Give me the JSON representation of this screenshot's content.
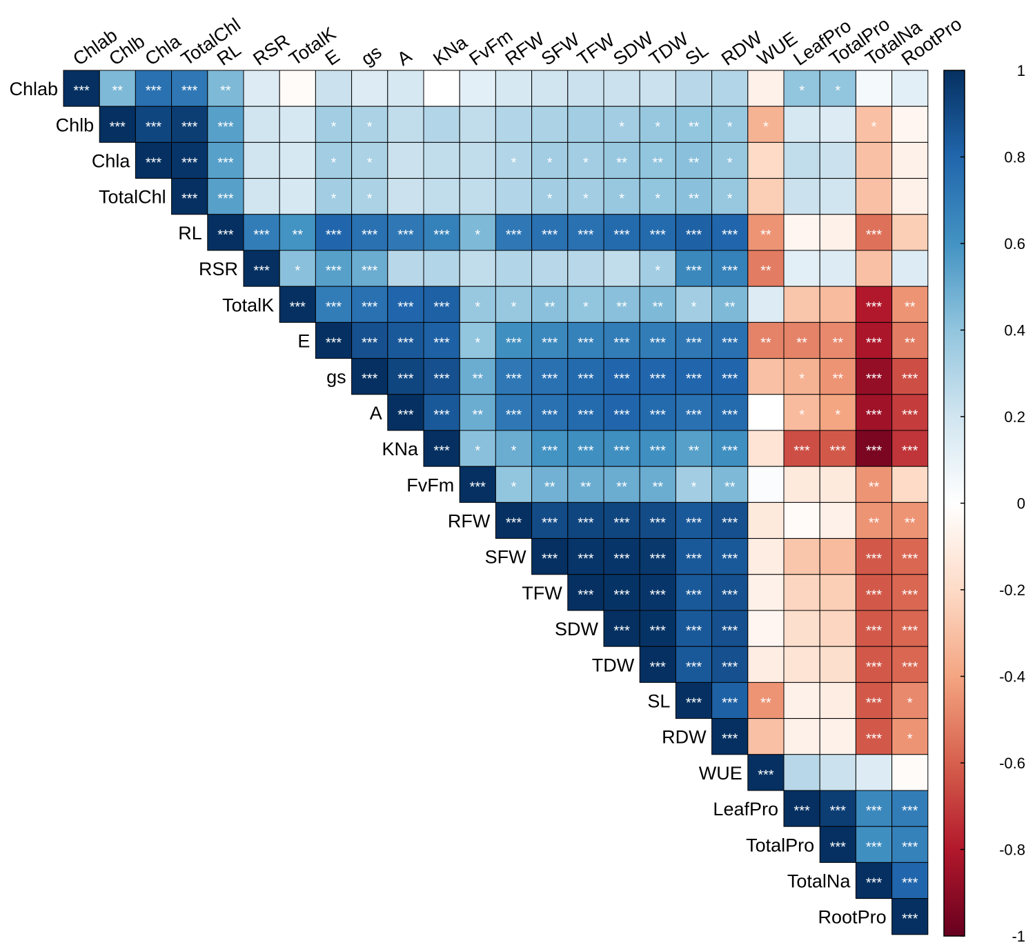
{
  "chart_data": {
    "type": "heatmap",
    "title": "",
    "variables": [
      "Chlab",
      "Chlb",
      "Chla",
      "TotalChl",
      "RL",
      "RSR",
      "TotalK",
      "E",
      "gs",
      "A",
      "KNa",
      "FvFm",
      "RFW",
      "SFW",
      "TFW",
      "SDW",
      "TDW",
      "SL",
      "RDW",
      "WUE",
      "LeafPro",
      "TotalPro",
      "TotalNa",
      "RootPro"
    ],
    "colorbar": {
      "min": -1,
      "max": 1,
      "ticks": [
        "1",
        "0.8",
        "0.6",
        "0.4",
        "0.2",
        "0",
        "-0.2",
        "-0.4",
        "-0.6",
        "-0.8",
        "-1"
      ]
    },
    "colors": {
      "neg": "#67001f",
      "mid": "#ffffff",
      "pos": "#053061",
      "grid": "#000000",
      "star": "#ffffff"
    },
    "values": [
      [
        1,
        0.45,
        0.75,
        0.72,
        0.45,
        0.15,
        -0.02,
        0.22,
        0.15,
        0.18,
        0.0,
        0.12,
        0.18,
        0.2,
        0.22,
        0.22,
        0.22,
        0.28,
        0.3,
        -0.08,
        0.4,
        0.4,
        0.05,
        0.12
      ],
      [
        null,
        1,
        0.92,
        0.95,
        0.55,
        0.2,
        0.18,
        0.35,
        0.32,
        0.25,
        0.3,
        0.25,
        0.3,
        0.32,
        0.35,
        0.35,
        0.38,
        0.4,
        0.38,
        -0.35,
        0.18,
        0.15,
        -0.3,
        -0.05
      ],
      [
        null,
        null,
        1,
        0.98,
        0.55,
        0.2,
        0.18,
        0.35,
        0.32,
        0.22,
        0.25,
        0.25,
        0.3,
        0.35,
        0.35,
        0.38,
        0.4,
        0.42,
        0.38,
        -0.2,
        0.25,
        0.22,
        -0.3,
        -0.08
      ],
      [
        null,
        null,
        null,
        1,
        0.55,
        0.2,
        0.18,
        0.35,
        0.32,
        0.22,
        0.25,
        0.25,
        0.3,
        0.35,
        0.35,
        0.38,
        0.4,
        0.42,
        0.38,
        -0.25,
        0.22,
        0.2,
        -0.3,
        -0.08
      ],
      [
        null,
        null,
        null,
        null,
        1,
        0.7,
        0.6,
        0.8,
        0.75,
        0.72,
        0.68,
        0.45,
        0.72,
        0.75,
        0.75,
        0.78,
        0.78,
        0.82,
        0.8,
        -0.45,
        -0.05,
        -0.08,
        -0.55,
        -0.25
      ],
      [
        null,
        null,
        null,
        null,
        null,
        1,
        0.42,
        0.55,
        0.5,
        0.28,
        0.3,
        0.25,
        0.3,
        0.28,
        0.28,
        0.25,
        0.35,
        0.65,
        0.68,
        -0.52,
        0.12,
        0.15,
        -0.3,
        0.15
      ],
      [
        null,
        null,
        null,
        null,
        null,
        null,
        1,
        0.7,
        0.75,
        0.8,
        0.82,
        0.38,
        0.38,
        0.42,
        0.4,
        0.42,
        0.45,
        0.35,
        0.45,
        0.15,
        -0.28,
        -0.32,
        -0.8,
        -0.45
      ],
      [
        null,
        null,
        null,
        null,
        null,
        null,
        null,
        1,
        0.88,
        0.85,
        0.82,
        0.4,
        0.62,
        0.65,
        0.68,
        0.7,
        0.7,
        0.72,
        0.75,
        -0.5,
        -0.5,
        -0.48,
        -0.82,
        -0.52
      ],
      [
        null,
        null,
        null,
        null,
        null,
        null,
        null,
        null,
        1,
        0.92,
        0.88,
        0.5,
        0.72,
        0.75,
        0.78,
        0.8,
        0.8,
        0.8,
        0.8,
        -0.3,
        -0.35,
        -0.45,
        -0.88,
        -0.65
      ],
      [
        null,
        null,
        null,
        null,
        null,
        null,
        null,
        null,
        null,
        1,
        0.85,
        0.5,
        0.72,
        0.75,
        0.78,
        0.8,
        0.78,
        0.75,
        0.78,
        0.0,
        -0.32,
        -0.4,
        -0.85,
        -0.7
      ],
      [
        null,
        null,
        null,
        null,
        null,
        null,
        null,
        null,
        null,
        null,
        1,
        0.42,
        0.5,
        0.6,
        0.62,
        0.62,
        0.62,
        0.55,
        0.62,
        -0.15,
        -0.65,
        -0.62,
        -0.95,
        -0.72
      ],
      [
        null,
        null,
        null,
        null,
        null,
        null,
        null,
        null,
        null,
        null,
        null,
        1,
        0.4,
        0.48,
        0.5,
        0.5,
        0.5,
        0.35,
        0.45,
        0.02,
        -0.12,
        -0.12,
        -0.45,
        -0.2
      ],
      [
        null,
        null,
        null,
        null,
        null,
        null,
        null,
        null,
        null,
        null,
        null,
        null,
        1,
        0.9,
        0.92,
        0.92,
        0.9,
        0.85,
        0.88,
        -0.12,
        -0.02,
        -0.08,
        -0.45,
        -0.45
      ],
      [
        null,
        null,
        null,
        null,
        null,
        null,
        null,
        null,
        null,
        null,
        null,
        null,
        null,
        1,
        0.98,
        0.98,
        0.97,
        0.85,
        0.85,
        -0.1,
        -0.28,
        -0.32,
        -0.62,
        -0.58
      ],
      [
        null,
        null,
        null,
        null,
        null,
        null,
        null,
        null,
        null,
        null,
        null,
        null,
        null,
        null,
        1,
        0.99,
        0.98,
        0.85,
        0.88,
        -0.08,
        -0.22,
        -0.25,
        -0.62,
        -0.58
      ],
      [
        null,
        null,
        null,
        null,
        null,
        null,
        null,
        null,
        null,
        null,
        null,
        null,
        null,
        null,
        null,
        1,
        0.99,
        0.85,
        0.88,
        -0.05,
        -0.18,
        -0.22,
        -0.62,
        -0.58
      ],
      [
        null,
        null,
        null,
        null,
        null,
        null,
        null,
        null,
        null,
        null,
        null,
        null,
        null,
        null,
        null,
        null,
        1,
        0.85,
        0.88,
        -0.1,
        -0.15,
        -0.18,
        -0.62,
        -0.58
      ],
      [
        null,
        null,
        null,
        null,
        null,
        null,
        null,
        null,
        null,
        null,
        null,
        null,
        null,
        null,
        null,
        null,
        null,
        1,
        0.82,
        -0.45,
        -0.08,
        -0.1,
        -0.62,
        -0.48
      ],
      [
        null,
        null,
        null,
        null,
        null,
        null,
        null,
        null,
        null,
        null,
        null,
        null,
        null,
        null,
        null,
        null,
        null,
        null,
        1,
        -0.3,
        -0.08,
        -0.08,
        -0.62,
        -0.45
      ],
      [
        null,
        null,
        null,
        null,
        null,
        null,
        null,
        null,
        null,
        null,
        null,
        null,
        null,
        null,
        null,
        null,
        null,
        null,
        null,
        1,
        0.28,
        0.22,
        0.15,
        -0.02
      ],
      [
        null,
        null,
        null,
        null,
        null,
        null,
        null,
        null,
        null,
        null,
        null,
        null,
        null,
        null,
        null,
        null,
        null,
        null,
        null,
        null,
        1,
        0.95,
        0.65,
        0.7
      ],
      [
        null,
        null,
        null,
        null,
        null,
        null,
        null,
        null,
        null,
        null,
        null,
        null,
        null,
        null,
        null,
        null,
        null,
        null,
        null,
        null,
        null,
        1,
        0.62,
        0.68
      ],
      [
        null,
        null,
        null,
        null,
        null,
        null,
        null,
        null,
        null,
        null,
        null,
        null,
        null,
        null,
        null,
        null,
        null,
        null,
        null,
        null,
        null,
        null,
        1,
        0.8
      ],
      [
        null,
        null,
        null,
        null,
        null,
        null,
        null,
        null,
        null,
        null,
        null,
        null,
        null,
        null,
        null,
        null,
        null,
        null,
        null,
        null,
        null,
        null,
        null,
        1
      ]
    ],
    "significance": [
      [
        "***",
        "**",
        "***",
        "***",
        "**",
        "",
        "",
        "",
        "",
        "",
        "",
        "",
        "",
        "",
        "",
        "",
        "",
        "",
        "",
        "",
        "*",
        "*",
        "",
        ""
      ],
      [
        null,
        "***",
        "***",
        "***",
        "***",
        "",
        "",
        "*",
        "*",
        "",
        "",
        "",
        "",
        "",
        "",
        "*",
        "*",
        "**",
        "*",
        "*",
        "",
        "",
        "*",
        ""
      ],
      [
        null,
        null,
        "***",
        "***",
        "***",
        "",
        "",
        "*",
        "*",
        "",
        "",
        "",
        "*",
        "*",
        "*",
        "**",
        "**",
        "**",
        "*",
        "",
        "",
        "",
        "",
        ""
      ],
      [
        null,
        null,
        null,
        "***",
        "***",
        "",
        "",
        "*",
        "*",
        "",
        "",
        "",
        "",
        "*",
        "*",
        "*",
        "*",
        "**",
        "*",
        "",
        "",
        "",
        "",
        ""
      ],
      [
        null,
        null,
        null,
        null,
        "***",
        "***",
        "**",
        "***",
        "***",
        "***",
        "***",
        "*",
        "***",
        "***",
        "***",
        "***",
        "***",
        "***",
        "***",
        "**",
        "",
        "",
        "***",
        ""
      ],
      [
        null,
        null,
        null,
        null,
        null,
        "***",
        "*",
        "***",
        "***",
        "",
        "",
        "",
        "",
        "",
        "",
        "",
        "*",
        "***",
        "***",
        "**",
        "",
        "",
        "",
        ""
      ],
      [
        null,
        null,
        null,
        null,
        null,
        null,
        "***",
        "***",
        "***",
        "***",
        "***",
        "*",
        "*",
        "**",
        "*",
        "**",
        "**",
        "*",
        "**",
        "",
        "",
        "",
        "***",
        "**"
      ],
      [
        null,
        null,
        null,
        null,
        null,
        null,
        null,
        "***",
        "***",
        "***",
        "***",
        "*",
        "***",
        "***",
        "***",
        "***",
        "***",
        "***",
        "***",
        "**",
        "**",
        "**",
        "***",
        "**"
      ],
      [
        null,
        null,
        null,
        null,
        null,
        null,
        null,
        null,
        "***",
        "***",
        "***",
        "**",
        "***",
        "***",
        "***",
        "***",
        "***",
        "***",
        "***",
        "",
        "*",
        "**",
        "***",
        "***"
      ],
      [
        null,
        null,
        null,
        null,
        null,
        null,
        null,
        null,
        null,
        "***",
        "***",
        "**",
        "***",
        "***",
        "***",
        "***",
        "***",
        "***",
        "***",
        "",
        "*",
        "*",
        "***",
        "***"
      ],
      [
        null,
        null,
        null,
        null,
        null,
        null,
        null,
        null,
        null,
        null,
        "***",
        "*",
        "*",
        "***",
        "***",
        "***",
        "***",
        "**",
        "***",
        "",
        "***",
        "***",
        "***",
        "***"
      ],
      [
        null,
        null,
        null,
        null,
        null,
        null,
        null,
        null,
        null,
        null,
        null,
        "***",
        "*",
        "**",
        "**",
        "**",
        "**",
        "*",
        "**",
        "",
        "",
        "",
        "**",
        ""
      ],
      [
        null,
        null,
        null,
        null,
        null,
        null,
        null,
        null,
        null,
        null,
        null,
        null,
        "***",
        "***",
        "***",
        "***",
        "***",
        "***",
        "***",
        "",
        "",
        "",
        "**",
        "**"
      ],
      [
        null,
        null,
        null,
        null,
        null,
        null,
        null,
        null,
        null,
        null,
        null,
        null,
        null,
        "***",
        "***",
        "***",
        "***",
        "***",
        "***",
        "",
        "",
        "",
        "***",
        "***"
      ],
      [
        null,
        null,
        null,
        null,
        null,
        null,
        null,
        null,
        null,
        null,
        null,
        null,
        null,
        null,
        "***",
        "***",
        "***",
        "***",
        "***",
        "",
        "",
        "",
        "***",
        "***"
      ],
      [
        null,
        null,
        null,
        null,
        null,
        null,
        null,
        null,
        null,
        null,
        null,
        null,
        null,
        null,
        null,
        "***",
        "***",
        "***",
        "***",
        "",
        "",
        "",
        "***",
        "***"
      ],
      [
        null,
        null,
        null,
        null,
        null,
        null,
        null,
        null,
        null,
        null,
        null,
        null,
        null,
        null,
        null,
        null,
        "***",
        "***",
        "***",
        "",
        "",
        "",
        "***",
        "***"
      ],
      [
        null,
        null,
        null,
        null,
        null,
        null,
        null,
        null,
        null,
        null,
        null,
        null,
        null,
        null,
        null,
        null,
        null,
        "***",
        "***",
        "**",
        "",
        "",
        "***",
        "*"
      ],
      [
        null,
        null,
        null,
        null,
        null,
        null,
        null,
        null,
        null,
        null,
        null,
        null,
        null,
        null,
        null,
        null,
        null,
        null,
        "***",
        "",
        "",
        "",
        "***",
        "*"
      ],
      [
        null,
        null,
        null,
        null,
        null,
        null,
        null,
        null,
        null,
        null,
        null,
        null,
        null,
        null,
        null,
        null,
        null,
        null,
        null,
        "***",
        "",
        "",
        "",
        ""
      ],
      [
        null,
        null,
        null,
        null,
        null,
        null,
        null,
        null,
        null,
        null,
        null,
        null,
        null,
        null,
        null,
        null,
        null,
        null,
        null,
        null,
        "***",
        "***",
        "***",
        "***"
      ],
      [
        null,
        null,
        null,
        null,
        null,
        null,
        null,
        null,
        null,
        null,
        null,
        null,
        null,
        null,
        null,
        null,
        null,
        null,
        null,
        null,
        null,
        "***",
        "***",
        "***"
      ],
      [
        null,
        null,
        null,
        null,
        null,
        null,
        null,
        null,
        null,
        null,
        null,
        null,
        null,
        null,
        null,
        null,
        null,
        null,
        null,
        null,
        null,
        null,
        "***",
        "***"
      ],
      [
        null,
        null,
        null,
        null,
        null,
        null,
        null,
        null,
        null,
        null,
        null,
        null,
        null,
        null,
        null,
        null,
        null,
        null,
        null,
        null,
        null,
        null,
        null,
        "***"
      ]
    ]
  }
}
